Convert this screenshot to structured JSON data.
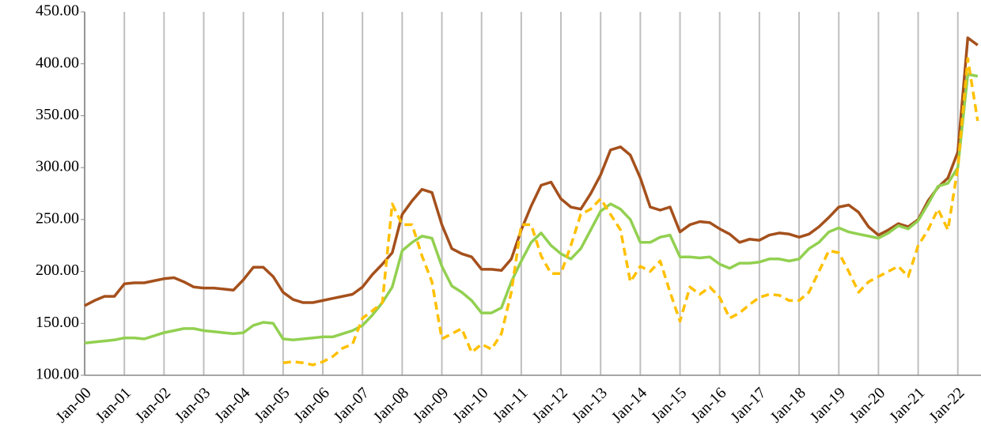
{
  "chart_data": {
    "type": "line",
    "x": [
      0,
      3,
      6,
      9,
      12,
      15,
      18,
      21,
      24,
      27,
      30,
      33,
      36,
      39,
      42,
      45,
      48,
      51,
      54,
      57,
      60,
      63,
      66,
      69,
      72,
      75,
      78,
      81,
      84,
      87,
      90,
      93,
      96,
      99,
      102,
      105,
      108,
      111,
      114,
      117,
      120,
      123,
      126,
      129,
      132,
      135,
      138,
      141,
      144,
      147,
      150,
      153,
      156,
      159,
      162,
      165,
      168,
      171,
      174,
      177,
      180,
      183,
      186,
      189,
      192,
      195,
      198,
      201,
      204,
      207,
      210,
      213,
      216,
      219,
      222,
      225,
      228,
      231,
      234,
      237,
      240,
      243,
      246,
      249,
      252,
      255,
      258,
      261,
      264,
      267,
      270
    ],
    "xlim": [
      0,
      271
    ],
    "xticks": [
      {
        "value": 0,
        "label": "Jan-00"
      },
      {
        "value": 12,
        "label": "Jan-01"
      },
      {
        "value": 24,
        "label": "Jan-02"
      },
      {
        "value": 36,
        "label": "Jan-03"
      },
      {
        "value": 48,
        "label": "Jan-04"
      },
      {
        "value": 60,
        "label": "Jan-05"
      },
      {
        "value": 72,
        "label": "Jan-06"
      },
      {
        "value": 84,
        "label": "Jan-07"
      },
      {
        "value": 96,
        "label": "Jan-08"
      },
      {
        "value": 108,
        "label": "Jan-09"
      },
      {
        "value": 120,
        "label": "Jan-10"
      },
      {
        "value": 132,
        "label": "Jan-11"
      },
      {
        "value": 144,
        "label": "Jan-12"
      },
      {
        "value": 156,
        "label": "Jan-13"
      },
      {
        "value": 168,
        "label": "Jan-14"
      },
      {
        "value": 180,
        "label": "Jan-15"
      },
      {
        "value": 192,
        "label": "Jan-16"
      },
      {
        "value": 204,
        "label": "Jan-17"
      },
      {
        "value": 216,
        "label": "Jan-18"
      },
      {
        "value": 228,
        "label": "Jan-19"
      },
      {
        "value": 240,
        "label": "Jan-20"
      },
      {
        "value": 252,
        "label": "Jan-21"
      },
      {
        "value": 264,
        "label": "Jan-22"
      }
    ],
    "ylim": [
      100,
      450
    ],
    "yticks": [
      {
        "value": 100,
        "label": "100.00"
      },
      {
        "value": 150,
        "label": "150.00"
      },
      {
        "value": 200,
        "label": "200.00"
      },
      {
        "value": 250,
        "label": "250.00"
      },
      {
        "value": 300,
        "label": "300.00"
      },
      {
        "value": 350,
        "label": "350.00"
      },
      {
        "value": 400,
        "label": "400.00"
      },
      {
        "value": 450,
        "label": "450.00"
      }
    ],
    "grid": "x",
    "series": [
      {
        "color": "#a5501c",
        "dashed": false,
        "values": [
          167,
          172,
          176,
          176,
          188,
          189,
          189,
          191,
          193,
          194,
          190,
          185,
          184,
          184,
          183,
          182,
          192,
          204,
          204,
          195,
          180,
          173,
          170,
          170,
          172,
          174,
          176,
          178,
          185,
          197,
          207,
          218,
          255,
          268,
          279,
          276,
          245,
          222,
          217,
          214,
          202,
          202,
          201,
          212,
          240,
          263,
          283,
          286,
          270,
          262,
          260,
          275,
          293,
          317,
          320,
          312,
          290,
          262,
          259,
          262,
          238,
          245,
          248,
          247,
          241,
          236,
          228,
          231,
          230,
          235,
          237,
          236,
          233,
          236,
          243,
          252,
          262,
          264,
          257,
          243,
          235,
          240,
          246,
          243,
          250,
          268,
          281,
          290,
          315,
          425,
          418
        ]
      },
      {
        "color": "#92d050",
        "dashed": false,
        "values": [
          131,
          132,
          133,
          134,
          136,
          136,
          135,
          138,
          141,
          143,
          145,
          145,
          143,
          142,
          141,
          140,
          141,
          148,
          151,
          150,
          135,
          134,
          135,
          136,
          137,
          137,
          140,
          143,
          148,
          158,
          170,
          185,
          220,
          228,
          234,
          232,
          205,
          186,
          180,
          172,
          160,
          160,
          165,
          190,
          210,
          228,
          237,
          225,
          217,
          212,
          222,
          240,
          258,
          265,
          260,
          250,
          228,
          228,
          233,
          235,
          214,
          214,
          213,
          214,
          207,
          203,
          208,
          208,
          209,
          212,
          212,
          210,
          212,
          222,
          228,
          238,
          242,
          238,
          236,
          234,
          232,
          237,
          244,
          241,
          249,
          265,
          282,
          285,
          300,
          390,
          388
        ]
      },
      {
        "color": "#ffc000",
        "dashed": true,
        "values": [
          null,
          null,
          null,
          null,
          null,
          null,
          null,
          null,
          null,
          null,
          null,
          null,
          null,
          null,
          null,
          null,
          null,
          null,
          null,
          null,
          112,
          113,
          112,
          110,
          113,
          118,
          126,
          130,
          155,
          162,
          170,
          265,
          245,
          245,
          215,
          190,
          135,
          140,
          145,
          122,
          130,
          125,
          140,
          180,
          245,
          245,
          215,
          198,
          198,
          225,
          255,
          260,
          270,
          255,
          240,
          190,
          205,
          200,
          210,
          180,
          152,
          185,
          178,
          185,
          175,
          155,
          160,
          168,
          175,
          178,
          177,
          172,
          172,
          180,
          200,
          220,
          218,
          200,
          180,
          190,
          195,
          200,
          205,
          195,
          225,
          240,
          260,
          240,
          300,
          405,
          345
        ]
      }
    ]
  }
}
